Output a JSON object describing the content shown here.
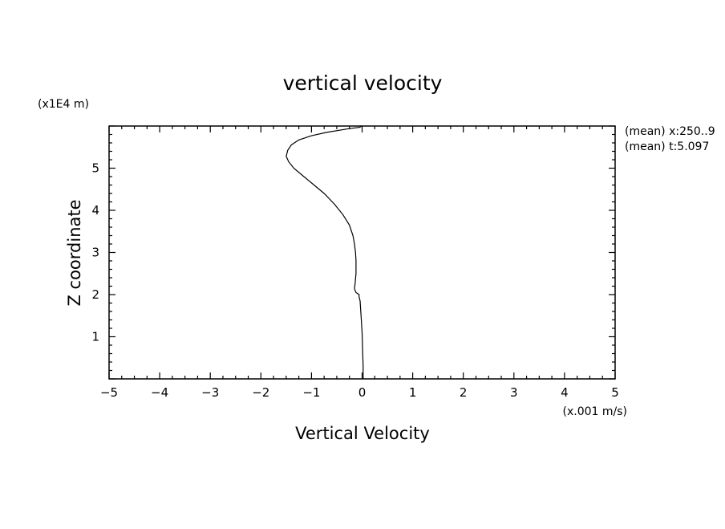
{
  "chart_data": {
    "type": "line",
    "title": "vertical velocity",
    "xlabel": "Vertical Velocity",
    "ylabel": "Z coordinate",
    "x_units": "(x.001 m/s)",
    "y_units": "(x1E4 m)",
    "xlim": [
      -5,
      5
    ],
    "ylim": [
      0,
      6
    ],
    "x_ticks": [
      "-5",
      "-4",
      "-3",
      "-2",
      "-1",
      "0",
      "1",
      "2",
      "3",
      "4",
      "5"
    ],
    "y_ticks": [
      "1",
      "2",
      "3",
      "4",
      "5"
    ],
    "grid": false,
    "annotations": [
      "(mean) x:250..9",
      "(mean) t:5.097"
    ],
    "series": [
      {
        "x": [
          0.02,
          0.02,
          0.01,
          0.0,
          -0.02,
          -0.04,
          -0.06,
          -0.06,
          -0.12,
          -0.14,
          -0.15,
          -0.14,
          -0.12,
          -0.12,
          -0.13,
          -0.15,
          -0.18,
          -0.25,
          -0.38,
          -0.55,
          -0.75,
          -0.95,
          -1.15,
          -1.35,
          -1.45,
          -1.5,
          -1.47,
          -1.4,
          -1.25,
          -1.0,
          -0.7,
          -0.3,
          -0.05,
          0.0
        ],
        "y": [
          0.0,
          0.3,
          0.7,
          1.1,
          1.5,
          1.85,
          1.95,
          2.0,
          2.05,
          2.1,
          2.15,
          2.25,
          2.5,
          2.8,
          3.0,
          3.2,
          3.4,
          3.65,
          3.9,
          4.15,
          4.4,
          4.6,
          4.8,
          5.0,
          5.15,
          5.28,
          5.42,
          5.55,
          5.67,
          5.77,
          5.85,
          5.93,
          5.97,
          6.0
        ]
      }
    ]
  }
}
